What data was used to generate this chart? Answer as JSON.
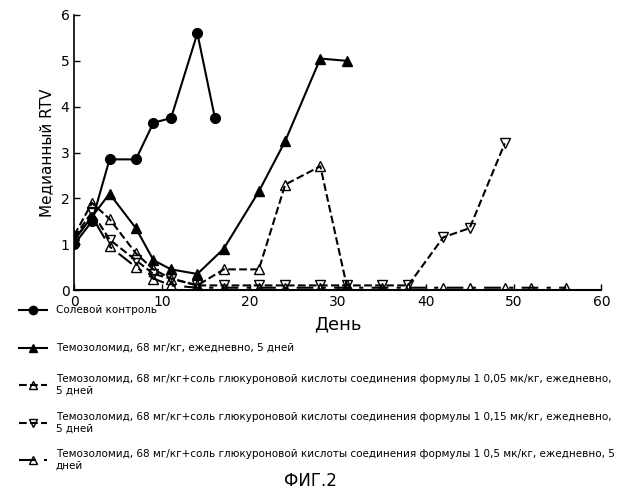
{
  "series": [
    {
      "label": "Солевой контроль",
      "x": [
        0,
        2,
        4,
        7,
        9,
        11,
        14,
        16
      ],
      "y": [
        1.0,
        1.5,
        2.85,
        2.85,
        3.65,
        3.75,
        5.6,
        3.75
      ],
      "color": "#000000",
      "linestyle": "-",
      "marker": "o",
      "markersize": 7,
      "fillstyle": "full",
      "linewidth": 1.5
    },
    {
      "label": "Темозоломид, 68 мг/кг, ежедневно, 5 дней",
      "x": [
        0,
        2,
        4,
        7,
        9,
        11,
        14,
        17,
        21,
        24,
        28,
        31
      ],
      "y": [
        1.1,
        1.6,
        2.1,
        1.35,
        0.65,
        0.45,
        0.35,
        0.9,
        2.15,
        3.25,
        5.05,
        5.0
      ],
      "color": "#000000",
      "linestyle": "-",
      "marker": "^",
      "markersize": 7,
      "fillstyle": "full",
      "linewidth": 1.5
    },
    {
      "label": "Темозоломид, 68 мг/кг+соль глюкуроновой кислоты соединения формулы 1 0,05 мк/кг, ежедневно,\n5 дней",
      "x": [
        0,
        2,
        4,
        7,
        9,
        11,
        14,
        17,
        21,
        24,
        28,
        31
      ],
      "y": [
        1.2,
        1.9,
        1.55,
        0.8,
        0.45,
        0.25,
        0.1,
        0.45,
        0.45,
        2.3,
        2.7,
        0.1
      ],
      "color": "#000000",
      "linestyle": "--",
      "marker": "^",
      "markersize": 7,
      "fillstyle": "none",
      "linewidth": 1.5
    },
    {
      "label": "Темозоломид, 68 мг/кг+соль глюкуроновой кислоты соединения формулы 1 0,15 мк/кг, ежедневно,\n5 дней",
      "x": [
        0,
        2,
        4,
        7,
        9,
        11,
        14,
        17,
        21,
        24,
        28,
        31,
        35,
        38,
        42,
        45,
        49
      ],
      "y": [
        1.15,
        1.7,
        1.1,
        0.65,
        0.35,
        0.25,
        0.1,
        0.1,
        0.1,
        0.1,
        0.1,
        0.1,
        0.1,
        0.1,
        1.15,
        1.35,
        3.2
      ],
      "color": "#000000",
      "linestyle": "--",
      "marker": "v",
      "markersize": 7,
      "fillstyle": "none",
      "linewidth": 1.5
    },
    {
      "label": "Темозоломид, 68 мг/кг+соль глюкуроновой кислоты соединения формулы 1 0,5 мк/кг, ежедневно, 5\nдней",
      "x": [
        0,
        2,
        4,
        7,
        9,
        11,
        14,
        17,
        21,
        24,
        28,
        31,
        35,
        38,
        42,
        45,
        49,
        52,
        56
      ],
      "y": [
        1.1,
        1.6,
        0.95,
        0.5,
        0.25,
        0.1,
        0.05,
        0.05,
        0.05,
        0.05,
        0.05,
        0.05,
        0.05,
        0.05,
        0.05,
        0.05,
        0.05,
        0.05,
        0.05
      ],
      "color": "#000000",
      "linestyle": "--",
      "marker": "^",
      "markersize": 7,
      "fillstyle": "none",
      "linewidth": 1.5,
      "dashes": [
        8,
        4,
        2,
        4
      ]
    }
  ],
  "xlabel": "День",
  "ylabel": "Медианный RTV",
  "xlim": [
    0,
    60
  ],
  "ylim": [
    0,
    6
  ],
  "yticks": [
    0,
    1,
    2,
    3,
    4,
    5,
    6
  ],
  "xticks": [
    0,
    10,
    20,
    30,
    40,
    50,
    60
  ],
  "figsize": [
    6.2,
    5.0
  ],
  "dpi": 100,
  "caption": "ФИГ.2",
  "legend_labels": [
    "Солевой контроль",
    "Темозоломид, 68 мг/кг, ежедневно, 5 дней",
    "Темозоломид, 68 мг/кг+соль глюкуроновой кислоты соединения формулы 1 0,05 мк/кг, ежедневно,\n5 дней",
    "Темозоломид, 68 мг/кг+соль глюкуроновой кислоты соединения формулы 1 0,15 мк/кг, ежедневно,\n5 дней",
    "Темозоломид, 68 мг/кг+соль глюкуроновой кислоты соединения формулы 1 0,5 мк/кг, ежедневно, 5\nдней"
  ]
}
